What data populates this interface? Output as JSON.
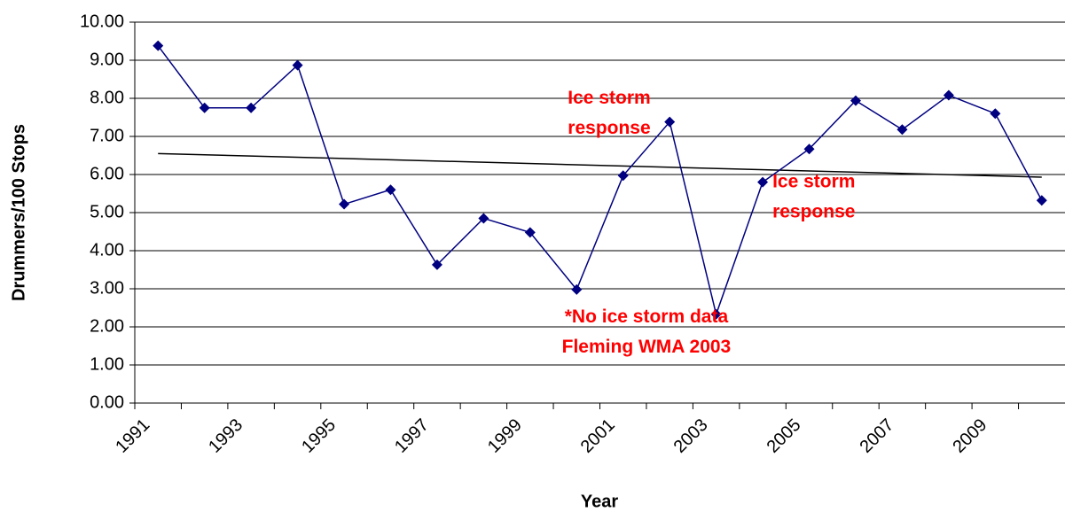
{
  "chart_data": {
    "type": "line",
    "x_label": "Year",
    "y_label": "Drummers/100 Stops",
    "x": [
      1991.5,
      1992.5,
      1993.5,
      1994.5,
      1995.5,
      1996.5,
      1997.5,
      1998.5,
      1999.5,
      2000.5,
      2001.5,
      2002.5,
      2003.5,
      2004.5,
      2005.5,
      2006.5,
      2007.5,
      2008.5,
      2009.5,
      2010.5
    ],
    "series": [
      {
        "color": "#000080",
        "values": [
          9.38,
          7.75,
          7.75,
          8.87,
          5.22,
          5.6,
          3.63,
          4.85,
          4.48,
          2.98,
          5.97,
          7.38,
          2.33,
          5.8,
          6.67,
          7.94,
          7.18,
          8.08,
          7.6,
          5.32
        ]
      }
    ],
    "trendline": {
      "color": "#000000",
      "x": [
        1991.5,
        2010.5
      ],
      "values": [
        6.55,
        5.93
      ]
    },
    "annotations": [
      {
        "lines": [
          "Ice storm",
          "response"
        ],
        "x": 2001.2,
        "y": 7.2
      },
      {
        "lines": [
          "Ice storm",
          "response"
        ],
        "x": 2005.6,
        "y": 5.0
      },
      {
        "lines": [
          "*No ice storm data",
          "Fleming WMA 2003"
        ],
        "x": 2002.0,
        "y": 1.45
      }
    ],
    "xlim": [
      1991,
      2011
    ],
    "xticks": [
      1991,
      1993,
      1995,
      1997,
      1999,
      2001,
      2003,
      2005,
      2007,
      2009
    ],
    "xminor_ticks": [
      1992,
      1994,
      1996,
      1998,
      2000,
      2002,
      2004,
      2006,
      2008,
      2010
    ],
    "ylim": [
      0,
      10
    ],
    "yticks": [
      {
        "value": 0,
        "label": "0.00"
      },
      {
        "value": 1,
        "label": "1.00"
      },
      {
        "value": 2,
        "label": "2.00"
      },
      {
        "value": 3,
        "label": "3.00"
      },
      {
        "value": 4,
        "label": "4.00"
      },
      {
        "value": 5,
        "label": "5.00"
      },
      {
        "value": 6,
        "label": "6.00"
      },
      {
        "value": 7,
        "label": "7.00"
      },
      {
        "value": 8,
        "label": "8.00"
      },
      {
        "value": 9,
        "label": "9.00"
      },
      {
        "value": 10,
        "label": "10.00"
      }
    ],
    "grid": true
  }
}
